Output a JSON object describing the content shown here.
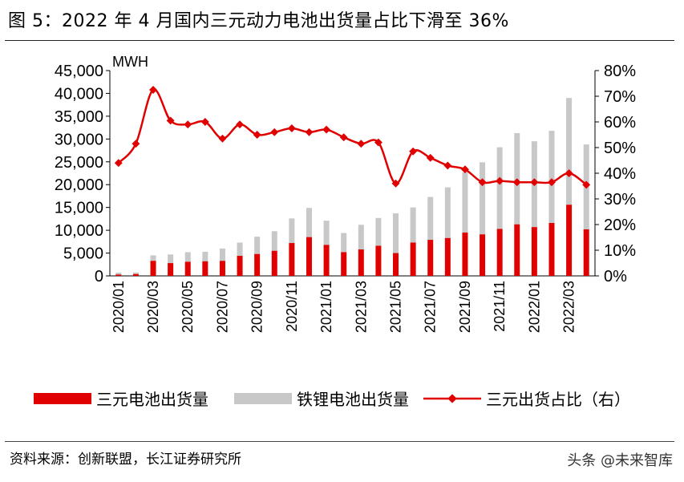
{
  "title": "图  5：2022 年 4 月国内三元动力电池出货量占比下滑至 36%",
  "source": "资料来源：创新联盟，长江证券研究所",
  "watermark": "头条 @未来智库",
  "chart_data": {
    "type": "bar",
    "unit_label": "MWH",
    "categories": [
      "2020/01",
      "2020/02",
      "2020/03",
      "2020/04",
      "2020/05",
      "2020/06",
      "2020/07",
      "2020/08",
      "2020/09",
      "2020/10",
      "2020/11",
      "2020/12",
      "2021/01",
      "2021/02",
      "2021/03",
      "2021/04",
      "2021/05",
      "2021/06",
      "2021/07",
      "2021/08",
      "2021/09",
      "2021/10",
      "2021/11",
      "2021/12",
      "2022/01",
      "2022/02",
      "2022/03",
      "2022/04"
    ],
    "x_tick_labels": [
      "2020/01",
      "2020/03",
      "2020/05",
      "2020/07",
      "2020/09",
      "2020/11",
      "2021/01",
      "2021/03",
      "2021/05",
      "2021/07",
      "2021/09",
      "2021/11",
      "2022/01",
      "2022/03"
    ],
    "ylim_left": [
      0,
      45000
    ],
    "y_ticks_left": [
      "0",
      "5,000",
      "10,000",
      "15,000",
      "20,000",
      "25,000",
      "30,000",
      "35,000",
      "40,000",
      "45,000"
    ],
    "ylim_right": [
      0,
      0.8
    ],
    "y_ticks_right": [
      "0%",
      "10%",
      "20%",
      "30%",
      "40%",
      "50%",
      "60%",
      "70%",
      "80%"
    ],
    "series": [
      {
        "name": "三元电池出货量",
        "kind": "bar",
        "color": "#e00000",
        "values": [
          300,
          400,
          3300,
          2800,
          3100,
          3200,
          3300,
          4400,
          4800,
          5500,
          7200,
          8500,
          6800,
          5200,
          5800,
          6600,
          5000,
          7300,
          7900,
          8300,
          9500,
          9100,
          10300,
          11300,
          10700,
          11600,
          15600,
          10200
        ]
      },
      {
        "name": "铁锂电池出货量",
        "kind": "bar",
        "color": "#c8c8c8",
        "values": [
          400,
          350,
          1200,
          1900,
          2100,
          2100,
          2700,
          2900,
          3800,
          4300,
          5400,
          6400,
          5300,
          4200,
          5400,
          6100,
          8700,
          7700,
          9400,
          11100,
          13200,
          15800,
          17900,
          20000,
          18800,
          20200,
          23400,
          18600
        ]
      },
      {
        "name": "三元出货占比（右）",
        "kind": "line",
        "color": "#e00000",
        "values": [
          0.44,
          0.515,
          0.725,
          0.605,
          0.59,
          0.6,
          0.535,
          0.59,
          0.55,
          0.56,
          0.575,
          0.56,
          0.57,
          0.54,
          0.515,
          0.52,
          0.36,
          0.485,
          0.46,
          0.43,
          0.415,
          0.365,
          0.37,
          0.365,
          0.365,
          0.365,
          0.4,
          0.355
        ]
      }
    ]
  }
}
